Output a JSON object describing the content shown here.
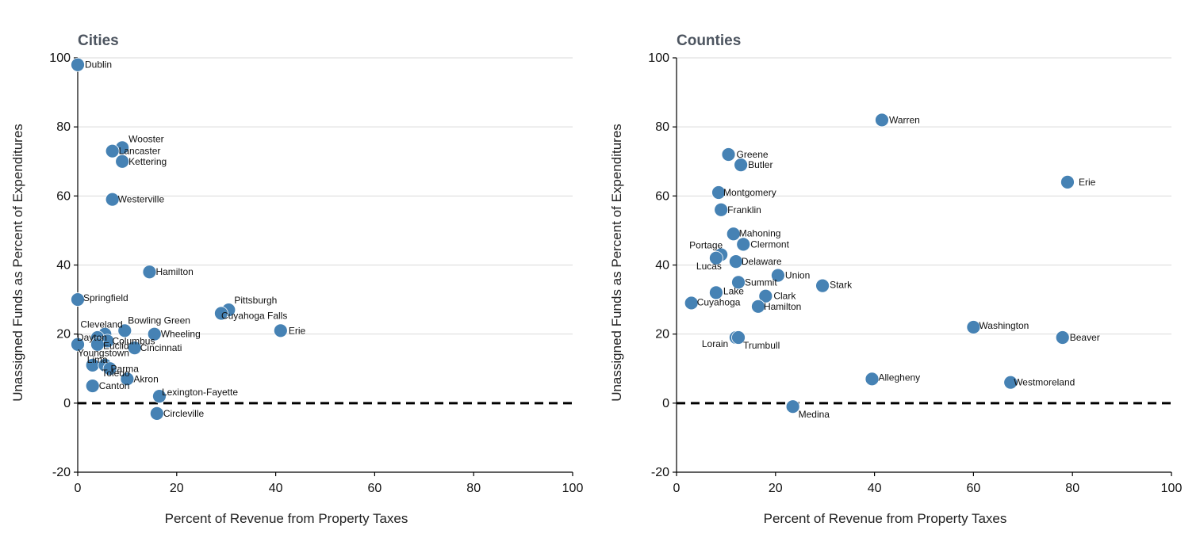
{
  "chart_data": [
    {
      "type": "scatter",
      "title": "Cities",
      "xlabel": "Percent of Revenue from Property Taxes",
      "ylabel": "Unassigned Funds as Percent of Expenditures",
      "xlim": [
        0,
        100
      ],
      "ylim": [
        -20,
        100
      ],
      "xticks": [
        0,
        20,
        40,
        60,
        80,
        100
      ],
      "yticks": [
        -20,
        0,
        20,
        40,
        60,
        80,
        100
      ],
      "grid": "horizontal",
      "reference_line": {
        "y": 0,
        "style": "dashed"
      },
      "marker_color": "#4682b4",
      "points": [
        {
          "label": "Dublin",
          "x": 0,
          "y": 98
        },
        {
          "label": "Wooster",
          "x": 9,
          "y": 74
        },
        {
          "label": "Lancaster",
          "x": 7,
          "y": 73
        },
        {
          "label": "Kettering",
          "x": 9,
          "y": 70
        },
        {
          "label": "Westerville",
          "x": 7,
          "y": 59
        },
        {
          "label": "Hamilton",
          "x": 14.5,
          "y": 38
        },
        {
          "label": "Springfield",
          "x": 0,
          "y": 30
        },
        {
          "label": "Pittsburgh",
          "x": 30.5,
          "y": 27
        },
        {
          "label": "Cuyahoga Falls",
          "x": 29,
          "y": 26
        },
        {
          "label": "Erie",
          "x": 41,
          "y": 21
        },
        {
          "label": "Bowling Green",
          "x": 9.5,
          "y": 21
        },
        {
          "label": "Wheeling",
          "x": 15.5,
          "y": 20
        },
        {
          "label": "Cleveland",
          "x": 5.5,
          "y": 20
        },
        {
          "label": "Dayton",
          "x": 4,
          "y": 19
        },
        {
          "label": "Columbus",
          "x": 6,
          "y": 18
        },
        {
          "label": "Euclid",
          "x": 4,
          "y": 17
        },
        {
          "label": "Cincinnati",
          "x": 11.5,
          "y": 16
        },
        {
          "label": "Youngstown",
          "x": 0,
          "y": 17
        },
        {
          "label": "Lima",
          "x": 3,
          "y": 11
        },
        {
          "label": "Toledo",
          "x": 5.5,
          "y": 11
        },
        {
          "label": "Parma",
          "x": 6.5,
          "y": 10
        },
        {
          "label": "Akron",
          "x": 10,
          "y": 7
        },
        {
          "label": "Canton",
          "x": 3,
          "y": 5
        },
        {
          "label": "Lexington-Fayette",
          "x": 16.5,
          "y": 2
        },
        {
          "label": "Circleville",
          "x": 16,
          "y": -3
        }
      ]
    },
    {
      "type": "scatter",
      "title": "Counties",
      "xlabel": "Percent of Revenue from Property Taxes",
      "ylabel": "Unassigned Funds as Percent of Expenditures",
      "xlim": [
        0,
        100
      ],
      "ylim": [
        -20,
        100
      ],
      "xticks": [
        0,
        20,
        40,
        60,
        80,
        100
      ],
      "yticks": [
        -20,
        0,
        20,
        40,
        60,
        80,
        100
      ],
      "grid": "horizontal",
      "reference_line": {
        "y": 0,
        "style": "dashed"
      },
      "marker_color": "#4682b4",
      "points": [
        {
          "label": "Warren",
          "x": 41.5,
          "y": 82
        },
        {
          "label": "Greene",
          "x": 10.5,
          "y": 72
        },
        {
          "label": "Butler",
          "x": 13,
          "y": 69
        },
        {
          "label": "Erie",
          "x": 79,
          "y": 64
        },
        {
          "label": "Montgomery",
          "x": 8.5,
          "y": 61
        },
        {
          "label": "Franklin",
          "x": 9,
          "y": 56
        },
        {
          "label": "Mahoning",
          "x": 11.5,
          "y": 49
        },
        {
          "label": "Clermont",
          "x": 13.5,
          "y": 46
        },
        {
          "label": "Portage",
          "x": 9,
          "y": 43
        },
        {
          "label": "Lucas",
          "x": 8,
          "y": 42
        },
        {
          "label": "Delaware",
          "x": 12,
          "y": 41
        },
        {
          "label": "Union",
          "x": 20.5,
          "y": 37
        },
        {
          "label": "Summit",
          "x": 12.5,
          "y": 35
        },
        {
          "label": "Stark",
          "x": 29.5,
          "y": 34
        },
        {
          "label": "Lake",
          "x": 8,
          "y": 32
        },
        {
          "label": "Clark",
          "x": 18,
          "y": 31
        },
        {
          "label": "Cuyahoga",
          "x": 3,
          "y": 29
        },
        {
          "label": "Hamilton",
          "x": 16.5,
          "y": 28
        },
        {
          "label": "Washington",
          "x": 60,
          "y": 22
        },
        {
          "label": "Beaver",
          "x": 78,
          "y": 19
        },
        {
          "label": "Lorain",
          "x": 12,
          "y": 19
        },
        {
          "label": "Trumbull",
          "x": 12.5,
          "y": 19
        },
        {
          "label": "Allegheny",
          "x": 39.5,
          "y": 7
        },
        {
          "label": "Westmoreland",
          "x": 67.5,
          "y": 6
        },
        {
          "label": "Medina",
          "x": 23.5,
          "y": -1
        }
      ]
    }
  ]
}
